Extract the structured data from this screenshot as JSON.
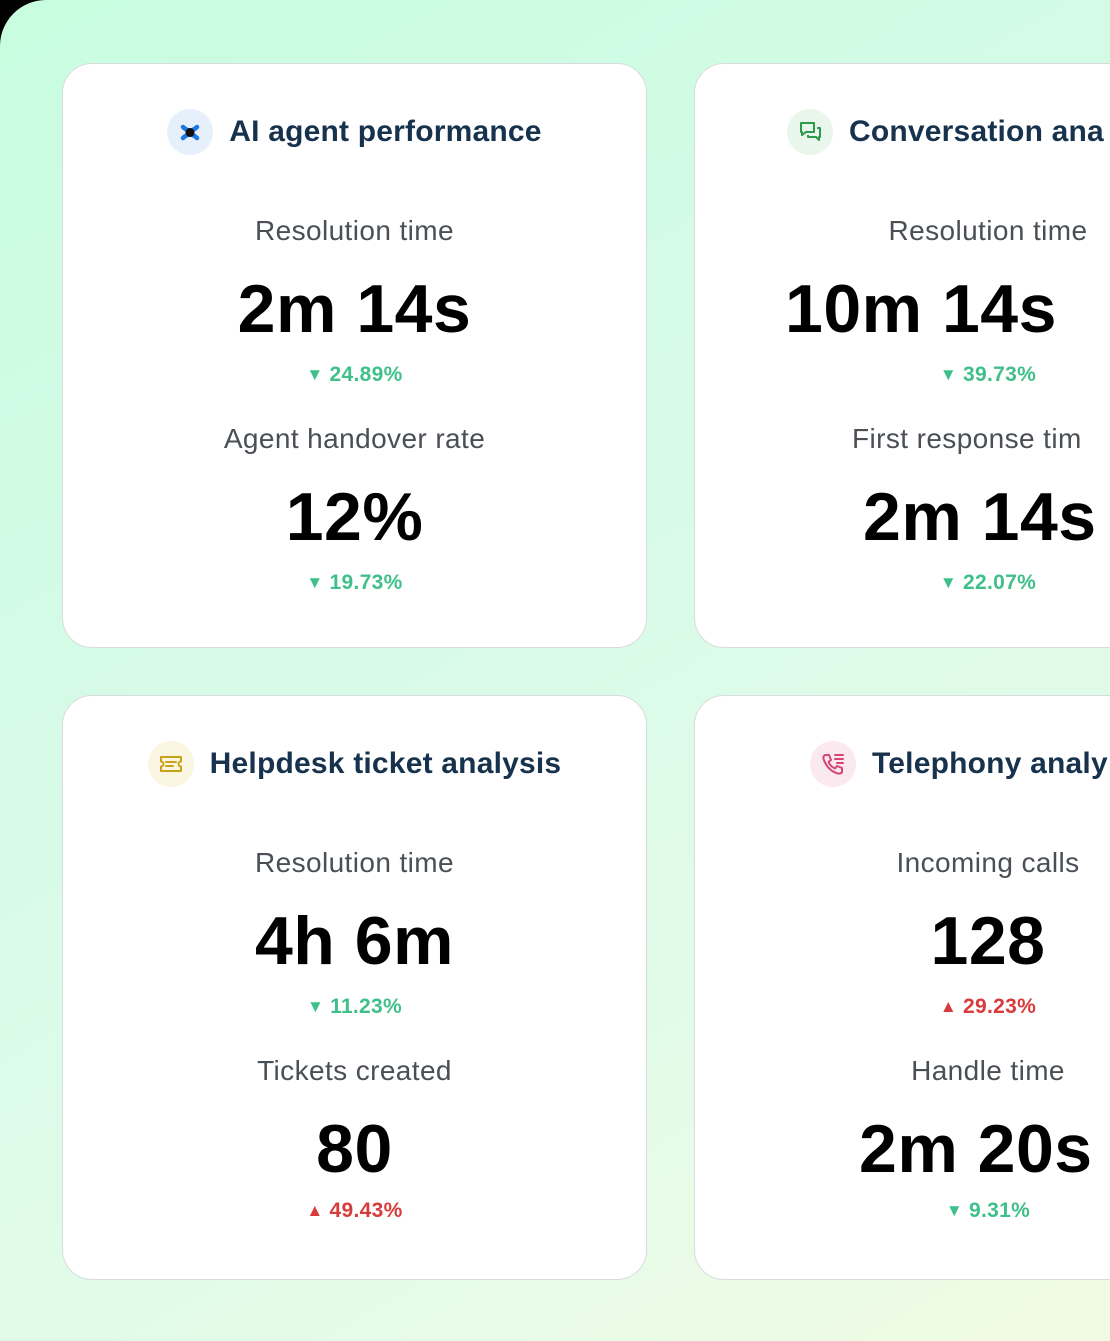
{
  "colors": {
    "positive": "#3fbf8a",
    "negative": "#d93a3a",
    "title": "#17324d"
  },
  "cards": [
    {
      "title": "AI agent performance",
      "icon": "ai-agent-icon",
      "metrics": [
        {
          "label": "Resolution time",
          "value": "2m 14s",
          "change": "24.89%",
          "direction": "down"
        },
        {
          "label": "Agent handover rate",
          "value": "12%",
          "change": "19.73%",
          "direction": "down"
        }
      ]
    },
    {
      "title": "Conversation ana",
      "icon": "chat-bubbles-icon",
      "metrics": [
        {
          "label": "Resolution time",
          "value": "10m 14s",
          "change": "39.73%",
          "direction": "down"
        },
        {
          "label": "First response tim",
          "value": "2m 14s",
          "change": "22.07%",
          "direction": "down"
        }
      ]
    },
    {
      "title": "Helpdesk ticket analysis",
      "icon": "ticket-icon",
      "metrics": [
        {
          "label": "Resolution time",
          "value": "4h 6m",
          "change": "11.23%",
          "direction": "down"
        },
        {
          "label": "Tickets created",
          "value": "80",
          "change": "49.43%",
          "direction": "up"
        }
      ]
    },
    {
      "title": "Telephony analy",
      "icon": "phone-list-icon",
      "metrics": [
        {
          "label": "Incoming calls",
          "value": "128",
          "change": "29.23%",
          "direction": "up"
        },
        {
          "label": "Handle time",
          "value": "2m 20s",
          "change": "9.31%",
          "direction": "down"
        }
      ]
    }
  ]
}
